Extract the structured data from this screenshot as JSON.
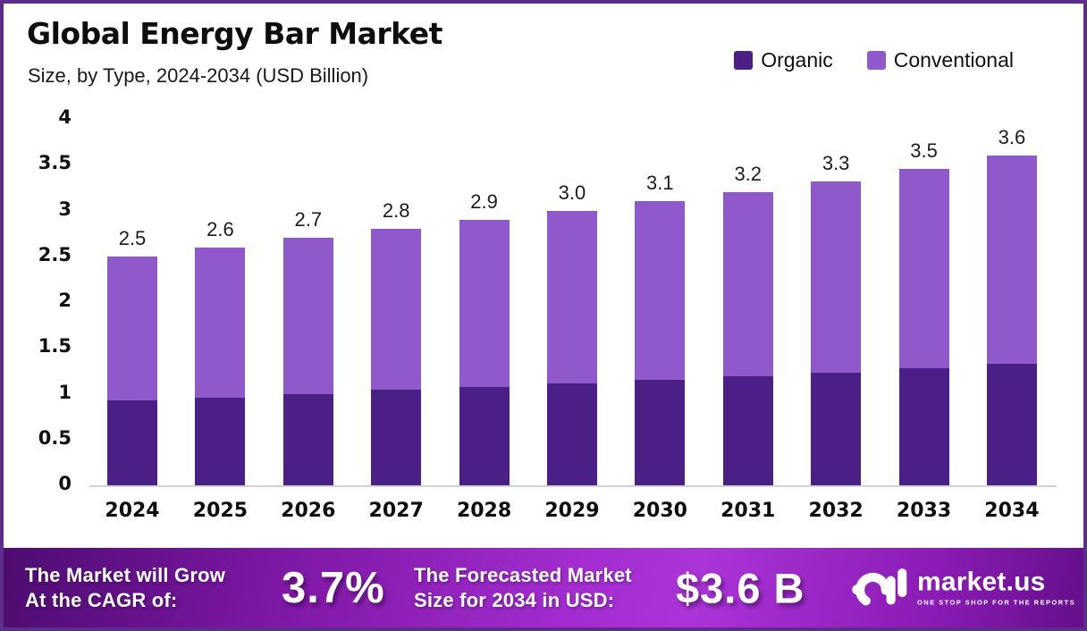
{
  "header": {
    "title": "Global Energy Bar Market",
    "subtitle": "Size, by Type, 2024-2034 (USD Billion)"
  },
  "legend": [
    {
      "label": "Organic",
      "color": "#4a2086"
    },
    {
      "label": "Conventional",
      "color": "#9059cb"
    }
  ],
  "chart_data": {
    "type": "bar",
    "stacked": true,
    "title": "Global Energy Bar Market",
    "subtitle": "Size, by Type, 2024-2034 (USD Billion)",
    "unit": "USD Billion",
    "categories": [
      "2024",
      "2025",
      "2026",
      "2027",
      "2028",
      "2029",
      "2030",
      "2031",
      "2032",
      "2033",
      "2034"
    ],
    "series": [
      {
        "name": "Organic",
        "color": "#4a2086",
        "values": [
          0.93,
          0.96,
          1.0,
          1.04,
          1.07,
          1.11,
          1.15,
          1.19,
          1.23,
          1.28,
          1.33
        ]
      },
      {
        "name": "Conventional",
        "color": "#9059cb",
        "values": [
          1.57,
          1.64,
          1.7,
          1.76,
          1.83,
          1.89,
          1.95,
          2.01,
          2.09,
          2.17,
          2.27
        ]
      }
    ],
    "total_labels": [
      "2.5",
      "2.6",
      "2.7",
      "2.8",
      "2.9",
      "3.0",
      "3.1",
      "3.2",
      "3.3",
      "3.5",
      "3.6"
    ],
    "ylim": [
      0,
      4
    ],
    "y_ticks": [
      "0",
      "0.5",
      "1",
      "1.5",
      "2",
      "2.5",
      "3",
      "3.5",
      "4"
    ],
    "grid": false,
    "legend_position": "top-right"
  },
  "banner": {
    "cagr_label_line1": "The Market will Grow",
    "cagr_label_line2": "At the CAGR of:",
    "cagr_value": "3.7%",
    "forecast_label_line1": "The Forecasted Market",
    "forecast_label_line2": "Size for 2034 in USD:",
    "forecast_value": "$3.6 B",
    "logo_text": "market.us",
    "logo_tagline": "ONE STOP SHOP FOR THE REPORTS"
  },
  "colors": {
    "frame_border": "#5b2e8c",
    "organic": "#4a2086",
    "conventional": "#9059cb",
    "banner_gradient_start": "#4d0c70",
    "banner_gradient_mid": "#ab34d8",
    "banner_gradient_end": "#640f8a"
  }
}
